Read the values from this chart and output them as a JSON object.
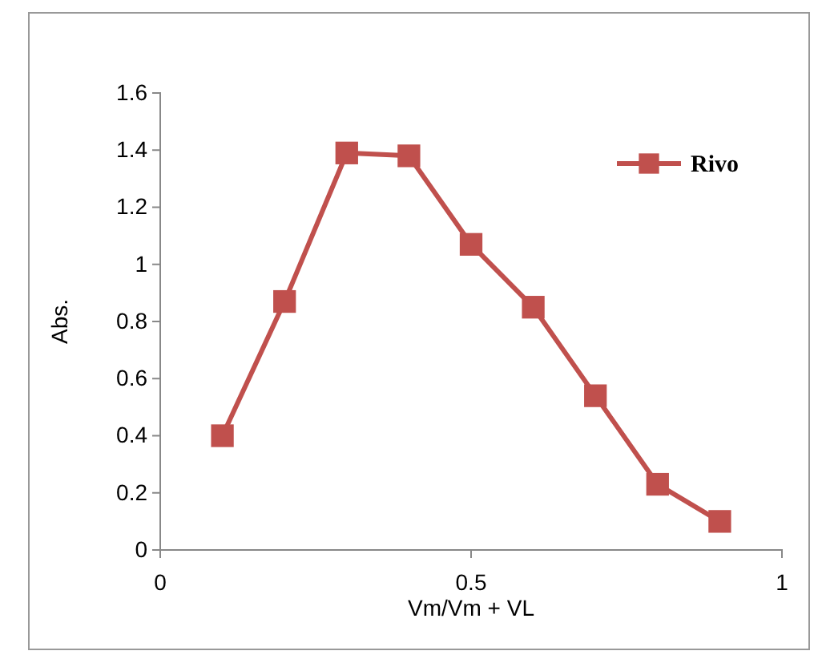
{
  "chart_data": {
    "type": "line",
    "xlabel": "Vm/Vm + VL",
    "ylabel": "Abs.",
    "x": [
      0.1,
      0.2,
      0.3,
      0.4,
      0.5,
      0.6,
      0.7,
      0.8,
      0.9
    ],
    "series": [
      {
        "name": "Rivo",
        "color": "#c0504d",
        "values": [
          0.4,
          0.87,
          1.39,
          1.38,
          1.07,
          0.85,
          0.54,
          0.23,
          0.1
        ]
      }
    ],
    "xlim": [
      0,
      1
    ],
    "xticks": [
      0,
      0.5,
      1
    ],
    "ylim": [
      0,
      1.6
    ],
    "yticks": [
      0,
      0.2,
      0.4,
      0.6,
      0.8,
      1,
      1.2,
      1.4,
      1.6
    ],
    "marker": "square",
    "line_style": "solid",
    "grid": false,
    "legend": "top right"
  }
}
